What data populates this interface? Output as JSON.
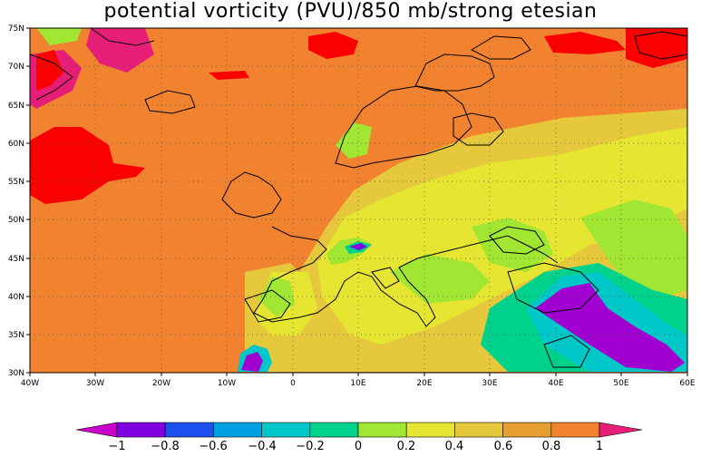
{
  "title": "potential vorticity (PVU)/850 mb/strong etesian",
  "map": {
    "x_ticks": [
      "40W",
      "30W",
      "20W",
      "10W",
      "0",
      "10E",
      "20E",
      "30E",
      "40E",
      "50E",
      "60E"
    ],
    "y_ticks": [
      "75N",
      "70N",
      "65N",
      "60N",
      "55N",
      "50N",
      "45N",
      "40N",
      "35N",
      "30N"
    ],
    "lon_range": [
      -40,
      60
    ],
    "lat_range": [
      30,
      75
    ],
    "grid": "dotted"
  },
  "colorbar": {
    "labels": [
      "−1",
      "−0.8",
      "−0.6",
      "−0.4",
      "−0.2",
      "0",
      "0.2",
      "0.4",
      "0.6",
      "0.8",
      "1"
    ],
    "colors": [
      "#a000d0",
      "#8000e0",
      "#1e50f0",
      "#00a0e0",
      "#00c8c8",
      "#00d28c",
      "#a0e632",
      "#e6e632",
      "#e6c83c",
      "#e6a032",
      "#f08230",
      "#fa0000"
    ],
    "under_color": "#c800c8",
    "over_color": "#e61e78"
  }
}
